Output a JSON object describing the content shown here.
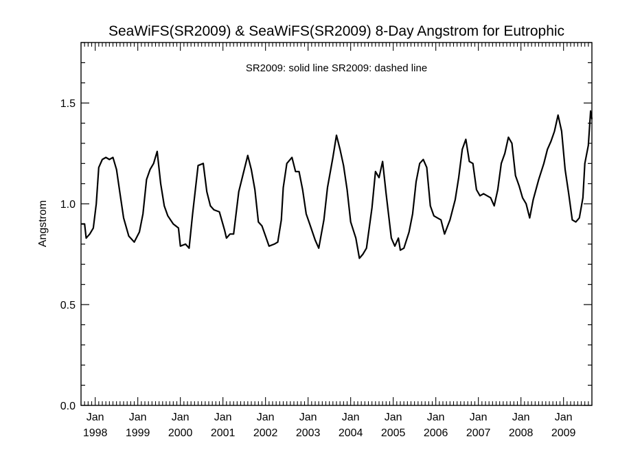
{
  "chart_data": {
    "type": "line",
    "title": "SeaWiFS(SR2009) & SeaWiFS(SR2009) 8-Day Angstrom for Eutrophic",
    "legend_text": "SR2009: solid line   SR2009: dashed line",
    "ylabel": "Angstrom",
    "xlabel": "",
    "ylim": [
      0.0,
      1.8
    ],
    "xlim": [
      "1997-09",
      "2009-09"
    ],
    "y_ticks": [
      0.0,
      0.5,
      1.0,
      1.5
    ],
    "y_tick_labels": [
      "0.0",
      "0.5",
      "1.0",
      "1.5"
    ],
    "x_ticks": [
      {
        "month": "Jan",
        "year": "1998",
        "date": "1998-01"
      },
      {
        "month": "Jan",
        "year": "1999",
        "date": "1999-01"
      },
      {
        "month": "Jan",
        "year": "2000",
        "date": "2000-01"
      },
      {
        "month": "Jan",
        "year": "2001",
        "date": "2001-01"
      },
      {
        "month": "Jan",
        "year": "2002",
        "date": "2002-01"
      },
      {
        "month": "Jan",
        "year": "2003",
        "date": "2003-01"
      },
      {
        "month": "Jan",
        "year": "2004",
        "date": "2004-01"
      },
      {
        "month": "Jan",
        "year": "2005",
        "date": "2005-01"
      },
      {
        "month": "Jan",
        "year": "2006",
        "date": "2006-01"
      },
      {
        "month": "Jan",
        "year": "2007",
        "date": "2007-01"
      },
      {
        "month": "Jan",
        "year": "2008",
        "date": "2008-01"
      },
      {
        "month": "Jan",
        "year": "2009",
        "date": "2009-01"
      }
    ],
    "grid": false,
    "series": [
      {
        "style": "solid",
        "color": "#000000",
        "points": [
          [
            "1997-09-01",
            0.9
          ],
          [
            "1997-10-01",
            0.9
          ],
          [
            "1997-10-15",
            0.83
          ],
          [
            "1997-11-15",
            0.85
          ],
          [
            "1997-12-15",
            0.88
          ],
          [
            "1998-01-10",
            1.0
          ],
          [
            "1998-02-01",
            1.18
          ],
          [
            "1998-03-01",
            1.22
          ],
          [
            "1998-04-01",
            1.23
          ],
          [
            "1998-05-01",
            1.22
          ],
          [
            "1998-06-01",
            1.23
          ],
          [
            "1998-07-01",
            1.17
          ],
          [
            "1998-08-01",
            1.05
          ],
          [
            "1998-09-01",
            0.93
          ],
          [
            "1998-10-15",
            0.84
          ],
          [
            "1998-12-01",
            0.81
          ],
          [
            "1999-01-15",
            0.86
          ],
          [
            "1999-02-15",
            0.95
          ],
          [
            "1999-03-15",
            1.12
          ],
          [
            "1999-04-15",
            1.17
          ],
          [
            "1999-05-15",
            1.2
          ],
          [
            "1999-06-15",
            1.26
          ],
          [
            "1999-07-15",
            1.1
          ],
          [
            "1999-08-15",
            0.99
          ],
          [
            "1999-09-15",
            0.94
          ],
          [
            "1999-11-01",
            0.9
          ],
          [
            "1999-12-15",
            0.88
          ],
          [
            "2000-01-01",
            0.79
          ],
          [
            "2000-02-15",
            0.8
          ],
          [
            "2000-03-15",
            0.78
          ],
          [
            "2000-04-15",
            0.95
          ],
          [
            "2000-06-01",
            1.19
          ],
          [
            "2000-07-15",
            1.2
          ],
          [
            "2000-08-15",
            1.06
          ],
          [
            "2000-09-15",
            0.99
          ],
          [
            "2000-10-15",
            0.97
          ],
          [
            "2000-12-01",
            0.96
          ],
          [
            "2001-01-15",
            0.87
          ],
          [
            "2001-02-01",
            0.83
          ],
          [
            "2001-03-01",
            0.85
          ],
          [
            "2001-04-01",
            0.85
          ],
          [
            "2001-05-15",
            1.06
          ],
          [
            "2001-07-01",
            1.17
          ],
          [
            "2001-08-01",
            1.24
          ],
          [
            "2001-09-01",
            1.17
          ],
          [
            "2001-10-01",
            1.07
          ],
          [
            "2001-11-01",
            0.91
          ],
          [
            "2001-12-01",
            0.89
          ],
          [
            "2002-01-01",
            0.84
          ],
          [
            "2002-02-01",
            0.79
          ],
          [
            "2002-03-15",
            0.8
          ],
          [
            "2002-04-15",
            0.81
          ],
          [
            "2002-05-15",
            0.92
          ],
          [
            "2002-06-01",
            1.08
          ],
          [
            "2002-07-01",
            1.2
          ],
          [
            "2002-08-15",
            1.23
          ],
          [
            "2002-09-15",
            1.16
          ],
          [
            "2002-10-15",
            1.16
          ],
          [
            "2002-11-15",
            1.07
          ],
          [
            "2002-12-15",
            0.95
          ],
          [
            "2003-01-15",
            0.9
          ],
          [
            "2003-03-01",
            0.82
          ],
          [
            "2003-04-01",
            0.78
          ],
          [
            "2003-05-15",
            0.92
          ],
          [
            "2003-06-15",
            1.08
          ],
          [
            "2003-08-01",
            1.23
          ],
          [
            "2003-09-01",
            1.34
          ],
          [
            "2003-10-01",
            1.27
          ],
          [
            "2003-11-01",
            1.19
          ],
          [
            "2003-12-01",
            1.07
          ],
          [
            "2004-01-01",
            0.91
          ],
          [
            "2004-02-15",
            0.83
          ],
          [
            "2004-03-15",
            0.73
          ],
          [
            "2004-04-15",
            0.75
          ],
          [
            "2004-05-15",
            0.78
          ],
          [
            "2004-07-01",
            0.98
          ],
          [
            "2004-08-01",
            1.16
          ],
          [
            "2004-09-01",
            1.13
          ],
          [
            "2004-10-01",
            1.21
          ],
          [
            "2004-11-01",
            1.05
          ],
          [
            "2004-12-15",
            0.83
          ],
          [
            "2005-01-15",
            0.79
          ],
          [
            "2005-02-15",
            0.83
          ],
          [
            "2005-03-01",
            0.77
          ],
          [
            "2005-04-01",
            0.78
          ],
          [
            "2005-05-15",
            0.86
          ],
          [
            "2005-06-15",
            0.95
          ],
          [
            "2005-07-15",
            1.11
          ],
          [
            "2005-08-15",
            1.2
          ],
          [
            "2005-09-15",
            1.22
          ],
          [
            "2005-10-15",
            1.18
          ],
          [
            "2005-11-15",
            0.99
          ],
          [
            "2005-12-15",
            0.94
          ],
          [
            "2006-01-15",
            0.93
          ],
          [
            "2006-02-15",
            0.92
          ],
          [
            "2006-03-15",
            0.85
          ],
          [
            "2006-05-01",
            0.92
          ],
          [
            "2006-06-15",
            1.02
          ],
          [
            "2006-07-15",
            1.13
          ],
          [
            "2006-08-15",
            1.27
          ],
          [
            "2006-09-15",
            1.32
          ],
          [
            "2006-10-15",
            1.21
          ],
          [
            "2006-11-15",
            1.2
          ],
          [
            "2006-12-15",
            1.07
          ],
          [
            "2007-01-15",
            1.04
          ],
          [
            "2007-02-15",
            1.05
          ],
          [
            "2007-03-15",
            1.04
          ],
          [
            "2007-04-15",
            1.03
          ],
          [
            "2007-05-15",
            0.99
          ],
          [
            "2007-06-15",
            1.07
          ],
          [
            "2007-07-15",
            1.2
          ],
          [
            "2007-08-15",
            1.25
          ],
          [
            "2007-09-15",
            1.33
          ],
          [
            "2007-10-15",
            1.3
          ],
          [
            "2007-11-15",
            1.14
          ],
          [
            "2007-12-15",
            1.09
          ],
          [
            "2008-01-15",
            1.03
          ],
          [
            "2008-02-15",
            1.0
          ],
          [
            "2008-03-15",
            0.93
          ],
          [
            "2008-04-15",
            1.02
          ],
          [
            "2008-06-01",
            1.12
          ],
          [
            "2008-07-15",
            1.2
          ],
          [
            "2008-08-15",
            1.27
          ],
          [
            "2008-09-15",
            1.31
          ],
          [
            "2008-10-15",
            1.36
          ],
          [
            "2008-11-15",
            1.44
          ],
          [
            "2008-12-15",
            1.36
          ],
          [
            "2009-01-15",
            1.17
          ],
          [
            "2009-02-15",
            1.05
          ],
          [
            "2009-03-15",
            0.92
          ],
          [
            "2009-04-15",
            0.91
          ],
          [
            "2009-05-15",
            0.93
          ],
          [
            "2009-06-15",
            1.03
          ],
          [
            "2009-07-01",
            1.2
          ],
          [
            "2009-08-01",
            1.29
          ],
          [
            "2009-08-20",
            1.46
          ],
          [
            "2009-09-01",
            1.42
          ]
        ]
      }
    ]
  }
}
